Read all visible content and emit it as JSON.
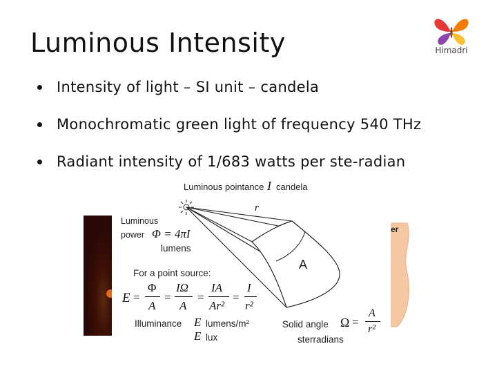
{
  "slide": {
    "title": "Luminous Intensity",
    "logo": {
      "icon": "butterfly-logo-icon",
      "text": "Himadri",
      "colors": [
        "#e53935",
        "#fbc02d",
        "#8e44ad",
        "#f57c00"
      ]
    },
    "bullets": [
      "Intensity of light – SI unit – candela",
      "Monochromatic green light of frequency 540 THz",
      "Radiant intensity of 1/683 watts per ste-radian"
    ]
  },
  "figure": {
    "pointance_label": "Luminous pointance",
    "pointance_symbol": "I",
    "pointance_unit": "candela",
    "radius_symbol": "r",
    "area_symbol": "A",
    "power_label_1": "Luminous",
    "power_label_2": "power",
    "power_formula": "Φ = 4πI",
    "power_unit": "lumens",
    "point_source_label": "For a point source:",
    "eq_E": "E",
    "eq_phi": "Φ",
    "eq_A": "A",
    "eq_IOmega": "IΩ",
    "eq_IA": "IA",
    "eq_Ar2": "Ar²",
    "eq_I": "I",
    "eq_r2": "r²",
    "illuminance_label": "Illuminance",
    "illuminance_symbol_1": "E",
    "illuminance_unit_1": "lumens/m²",
    "illuminance_symbol_2": "E",
    "illuminance_unit_2": "lux",
    "solid_angle_label": "Solid angle",
    "solid_angle_symbol": "Ω",
    "solid_angle_unit": "sterradians",
    "partial_right_text": "er"
  }
}
